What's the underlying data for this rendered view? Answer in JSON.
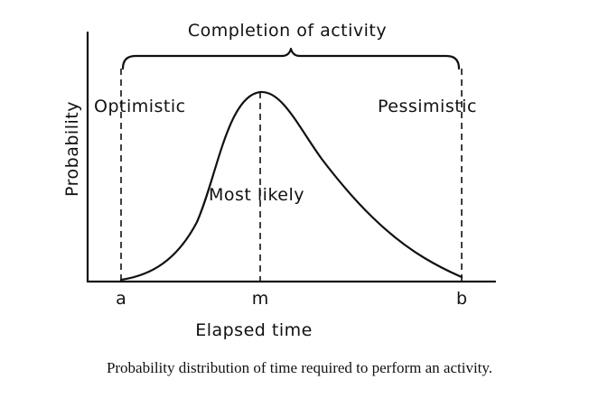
{
  "figure": {
    "bracket_label": "Completion of activity",
    "y_axis_label": "Probability",
    "x_axis_label": "Elapsed time",
    "optimistic_label": "Optimistic",
    "pessimistic_label": "Pessimistic",
    "most_likely_label": "Most likely",
    "ticks": {
      "a": "a",
      "m": "m",
      "b": "b"
    }
  },
  "caption": "Probability distribution of time required to perform an activity."
}
